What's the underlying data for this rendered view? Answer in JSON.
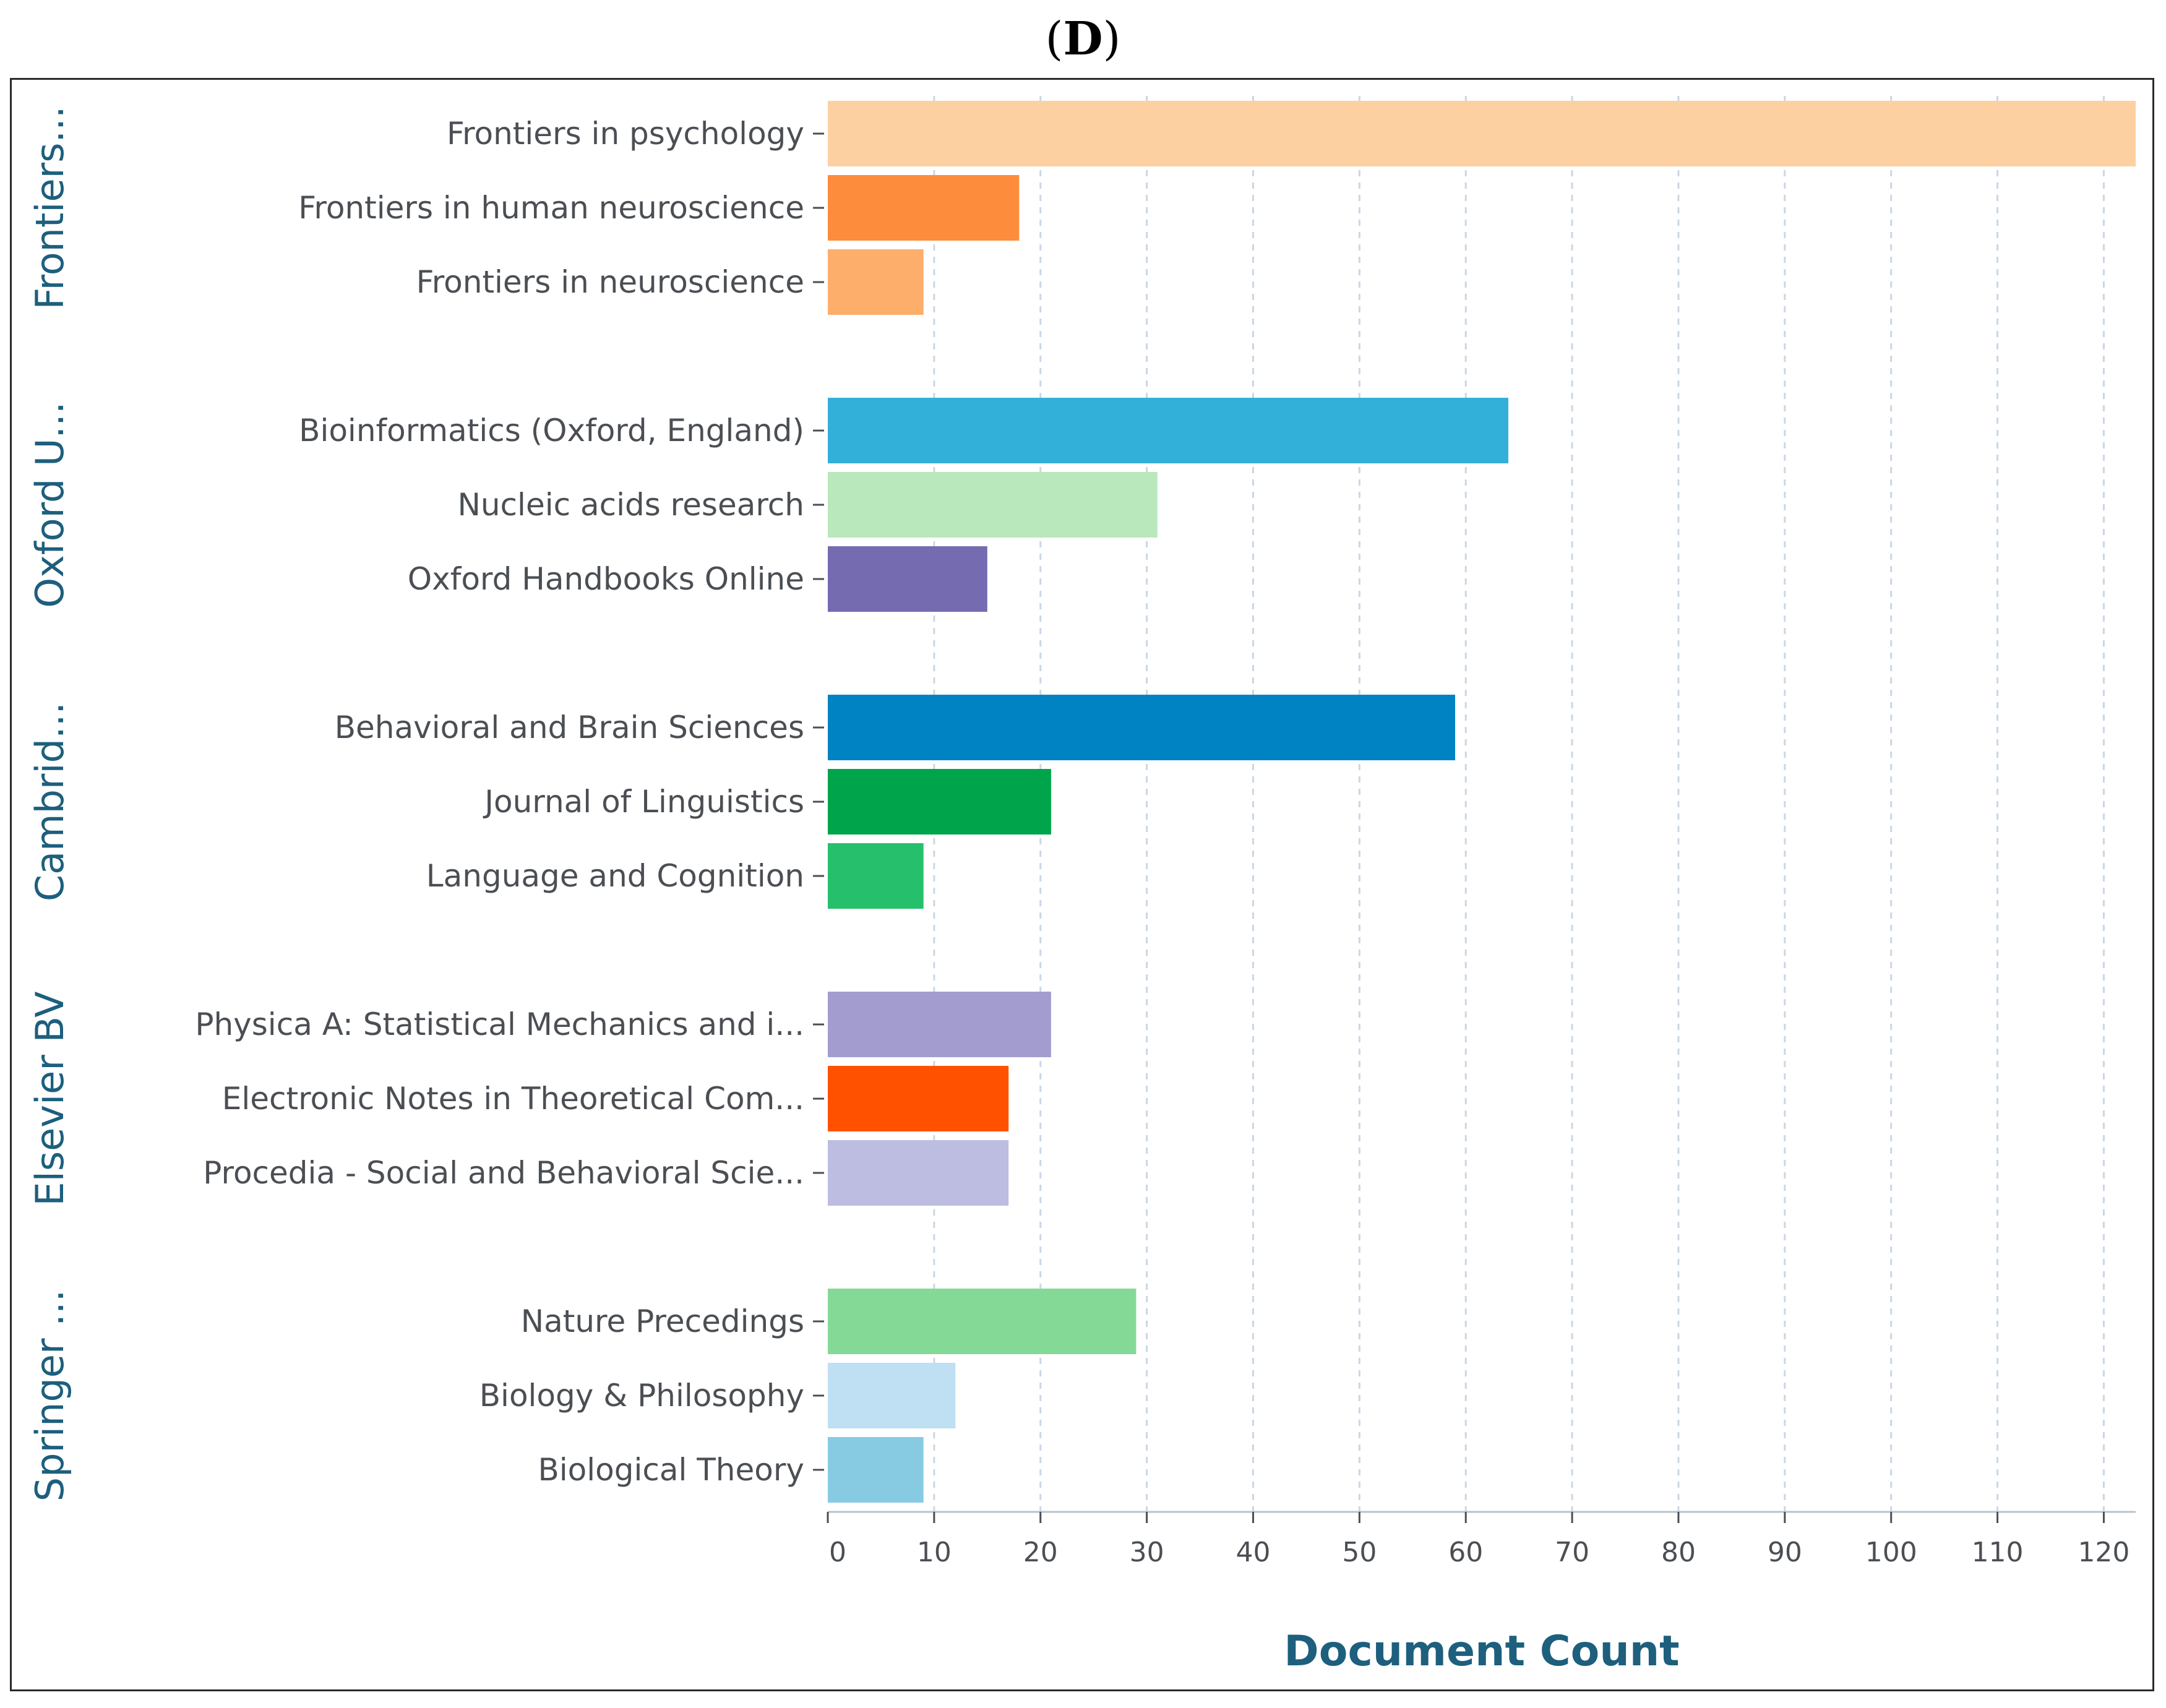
{
  "panel_label": "D",
  "chart_data": {
    "type": "bar",
    "orientation": "horizontal",
    "xlabel": "Document Count",
    "xlim": [
      0,
      123
    ],
    "xticks": [
      0,
      10,
      20,
      30,
      40,
      50,
      60,
      70,
      80,
      90,
      100,
      110,
      120
    ],
    "grid": "vertical dashed",
    "groups": [
      {
        "name": "Frontiers...",
        "bars": [
          {
            "label": "Frontiers in psychology",
            "value": 123,
            "color": "#fdd0a2"
          },
          {
            "label": "Frontiers in human neuroscience",
            "value": 18,
            "color": "#fd8d3c"
          },
          {
            "label": "Frontiers in neuroscience",
            "value": 9,
            "color": "#fdae6b"
          }
        ]
      },
      {
        "name": "Oxford U...",
        "bars": [
          {
            "label": "Bioinformatics (Oxford, England)",
            "value": 64,
            "color": "#33b0d9"
          },
          {
            "label": "Nucleic acids research",
            "value": 31,
            "color": "#b8e8bc"
          },
          {
            "label": "Oxford Handbooks Online",
            "value": 15,
            "color": "#756bb1"
          }
        ]
      },
      {
        "name": "Cambrid...",
        "bars": [
          {
            "label": "Behavioral and Brain Sciences",
            "value": 59,
            "color": "#0083c3"
          },
          {
            "label": "Journal of Linguistics",
            "value": 21,
            "color": "#00a54b"
          },
          {
            "label": "Language and Cognition",
            "value": 9,
            "color": "#26c06c"
          }
        ]
      },
      {
        "name": "Elsevier BV",
        "bars": [
          {
            "label": "Physica A: Statistical Mechanics and i...",
            "value": 21,
            "color": "#a39ccf"
          },
          {
            "label": "Electronic Notes in Theoretical Com...",
            "value": 17,
            "color": "#ff5100"
          },
          {
            "label": "Procedia - Social and Behavioral Scie...",
            "value": 17,
            "color": "#bcbde0"
          }
        ]
      },
      {
        "name": "Springer ...",
        "bars": [
          {
            "label": "Nature Precedings",
            "value": 29,
            "color": "#85d996"
          },
          {
            "label": "Biology & Philosophy",
            "value": 12,
            "color": "#bfdff2"
          },
          {
            "label": "Biological Theory",
            "value": 9,
            "color": "#86cbe2"
          }
        ]
      }
    ]
  }
}
